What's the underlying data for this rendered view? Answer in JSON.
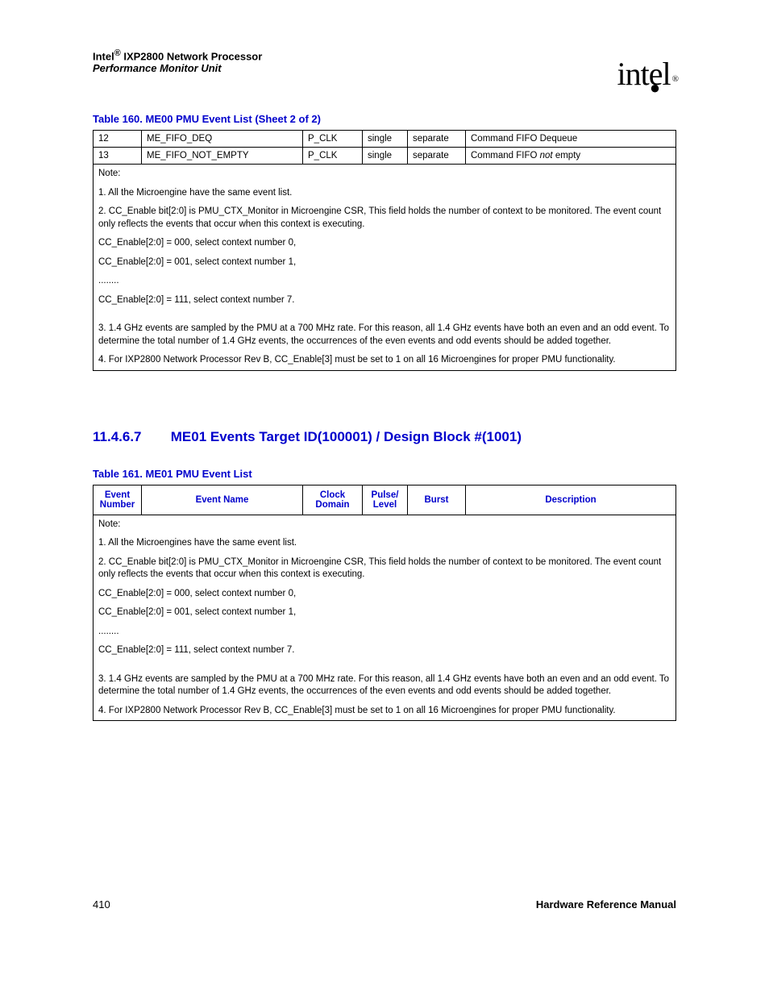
{
  "header": {
    "product_line1_prefix": "Intel",
    "product_line1_suffix": " IXP2800 Network Processor",
    "product_line2": "Performance Monitor Unit",
    "logo_text": "intel",
    "logo_reg": "®"
  },
  "table160": {
    "caption": "Table 160. ME00 PMU Event List (Sheet 2 of 2)",
    "rows": [
      {
        "num": "12",
        "name": "ME_FIFO_DEQ",
        "clk": "P_CLK",
        "pl": "single",
        "burst": "separate",
        "desc": "Command FIFO Dequeue"
      },
      {
        "num": "13",
        "name": "ME_FIFO_NOT_EMPTY",
        "clk": "P_CLK",
        "pl": "single",
        "burst": "separate",
        "desc_prefix": "Command FIFO ",
        "desc_em": "not",
        "desc_suffix": " empty"
      }
    ],
    "notes": {
      "label": "Note:",
      "n1": "1. All the Microengine have the same event list.",
      "n2": "2. CC_Enable bit[2:0] is PMU_CTX_Monitor in Microengine CSR, This field holds the number of context to be monitored. The event count only reflects the events that occur when this context is executing.",
      "cc0": "CC_Enable[2:0] = 000, select context number 0,",
      "cc1": "CC_Enable[2:0] = 001, select context number 1,",
      "dots": "........",
      "cc7": "CC_Enable[2:0] = 111, select context number 7.",
      "n3": "3. 1.4 GHz events are sampled by the PMU at a 700 MHz rate. For this reason, all 1.4 GHz events have both an even and an odd event. To determine the total number of 1.4 GHz events, the occurrences of the even events and odd events should be added together.",
      "n4": "4. For IXP2800 Network Processor Rev B, CC_Enable[3] must be set to 1 on all 16 Microengines for proper PMU functionality."
    }
  },
  "section": {
    "num": "11.4.6.7",
    "title": "ME01 Events Target ID(100001) / Design Block #(1001)"
  },
  "table161": {
    "caption": "Table 161. ME01 PMU Event List",
    "headers": {
      "num": "Event Number",
      "name": "Event Name",
      "clk": "Clock Domain",
      "pl": "Pulse/ Level",
      "burst": "Burst",
      "desc": "Description"
    },
    "notes": {
      "label": "Note:",
      "n1": "1. All the Microengines have the same event list.",
      "n2": "2. CC_Enable bit[2:0] is PMU_CTX_Monitor in Microengine CSR, This field holds the number of context to be monitored. The event count only reflects the events that occur when this context is executing.",
      "cc0": "CC_Enable[2:0] = 000, select context number 0,",
      "cc1": "CC_Enable[2:0] = 001, select context number 1,",
      "dots": "........",
      "cc7": "CC_Enable[2:0] = 111, select context number 7.",
      "n3": "3. 1.4 GHz events are sampled by the PMU at a 700 MHz rate. For this reason, all 1.4 GHz events have both an even and an odd event. To determine the total number of 1.4 GHz events, the occurrences of the even events and odd events should be added together.",
      "n4": "4. For IXP2800 Network Processor Rev B, CC_Enable[3] must be set to 1 on all 16 Microengines for proper PMU functionality."
    }
  },
  "footer": {
    "page": "410",
    "manual": "Hardware Reference Manual"
  }
}
